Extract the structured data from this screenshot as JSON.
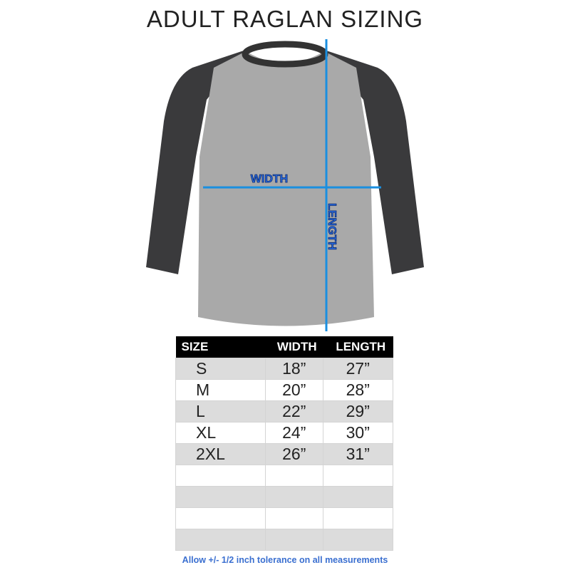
{
  "title": "ADULT RAGLAN SIZING",
  "labels": {
    "width": "WIDTH",
    "length": "LENGTH"
  },
  "colors": {
    "measure_line": "#1a8fe0",
    "body": "#a9a9a9",
    "sleeves": "#3a3a3c",
    "note": "#3a6fd0"
  },
  "table": {
    "headers": [
      "SIZE",
      "WIDTH",
      "LENGTH"
    ],
    "rows": [
      [
        "S",
        "18”",
        "27”"
      ],
      [
        "M",
        "20”",
        "28”"
      ],
      [
        "L",
        "22”",
        "29”"
      ],
      [
        "XL",
        "24”",
        "30”"
      ],
      [
        "2XL",
        "26”",
        "31”"
      ],
      [
        "",
        "",
        ""
      ],
      [
        "",
        "",
        ""
      ],
      [
        "",
        "",
        ""
      ],
      [
        "",
        "",
        ""
      ]
    ]
  },
  "note": "Allow +/- 1/2 inch tolerance on all measurements"
}
